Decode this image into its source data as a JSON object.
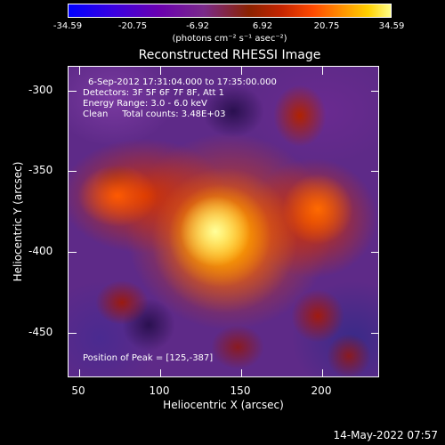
{
  "colorbar": {
    "ticks": [
      "-34.59",
      "-20.75",
      "-6.92",
      "6.92",
      "20.75",
      "34.59"
    ],
    "unit": "(photons cm⁻² s⁻¹ asec⁻²)"
  },
  "title": "Reconstructed RHESSI Image",
  "info": {
    "line1": "6-Sep-2012 17:31:04.000 to 17:35:00.000",
    "line2": "Detectors: 3F 5F 6F 7F 8F, Att 1",
    "line3": "Energy Range: 3.0 - 6.0 keV",
    "line4": "Clean     Total counts: 3.48E+03",
    "peak": "Position of Peak = [125,-387]"
  },
  "axes": {
    "xlabel": "Heliocentric X (arcsec)",
    "ylabel": "Heliocentric Y (arcsec)",
    "xticks": [
      "50",
      "100",
      "150",
      "200"
    ],
    "yticks": [
      "-300",
      "-350",
      "-400",
      "-450"
    ]
  },
  "timestamp": "14-May-2022 07:57"
}
